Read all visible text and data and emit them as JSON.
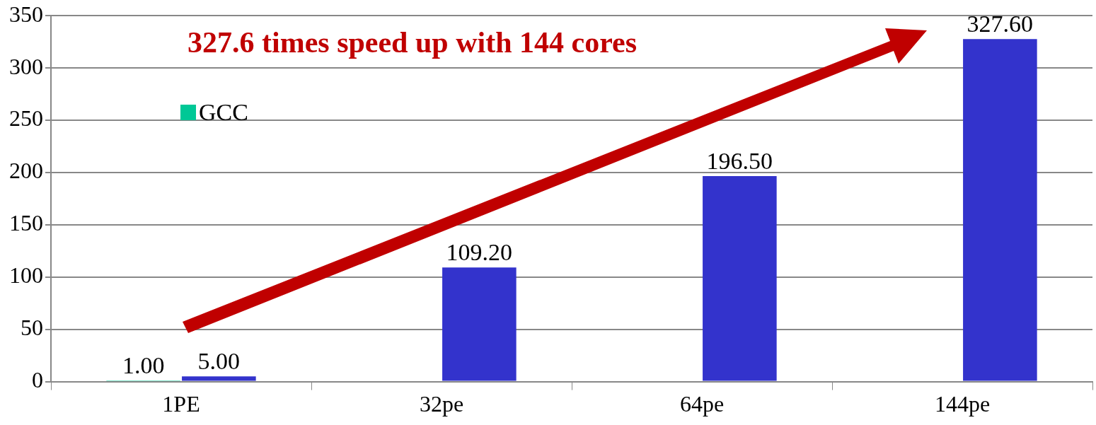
{
  "chart_data": {
    "type": "bar",
    "categories": [
      "1PE",
      "32pe",
      "64pe",
      "144pe"
    ],
    "series": [
      {
        "name": "GCC",
        "color": "#00c896",
        "values": [
          1,
          null,
          null,
          null
        ],
        "value_labels": [
          "1.00",
          null,
          null,
          null
        ]
      },
      {
        "color": "#3333cc",
        "values": [
          5,
          109.2,
          196.5,
          327.6
        ],
        "value_labels": [
          "5.00",
          "109.20",
          "196.50",
          "327.60"
        ]
      }
    ],
    "ylim": [
      0,
      350
    ],
    "yticks": [
      0,
      50,
      100,
      150,
      200,
      250,
      300,
      350
    ],
    "grid": "y",
    "legend": "top left",
    "annotations": [
      "327.6 times speed up with 144 cores"
    ]
  }
}
